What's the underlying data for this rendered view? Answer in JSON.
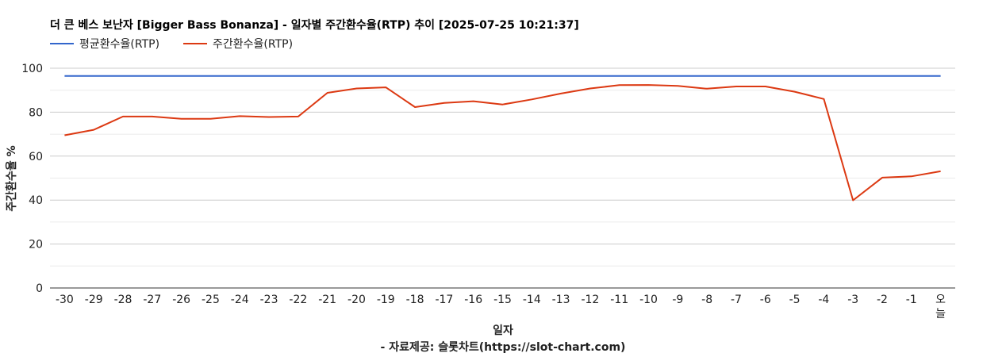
{
  "chart_data": {
    "type": "line",
    "title": "더 큰 베스 보난자 [Bigger Bass Bonanza] - 일자별 주간환수율(RTP) 추이 [2025-07-25 10:21:37]",
    "xlabel": "일자",
    "ylabel": "주간환수율 %",
    "source": "- 자료제공: 슬롯차트(https://slot-chart.com)",
    "ylim": [
      0,
      100
    ],
    "yticks": [
      0,
      20,
      40,
      60,
      80,
      100
    ],
    "grid": true,
    "legend_position": "top-left",
    "categories": [
      "-30",
      "-29",
      "-28",
      "-27",
      "-26",
      "-25",
      "-24",
      "-23",
      "-22",
      "-21",
      "-20",
      "-19",
      "-18",
      "-17",
      "-16",
      "-15",
      "-14",
      "-13",
      "-12",
      "-11",
      "-10",
      "-9",
      "-8",
      "-7",
      "-6",
      "-5",
      "-4",
      "-3",
      "-2",
      "-1",
      "오늘"
    ],
    "series": [
      {
        "name": "평균환수율(RTP)",
        "color": "#3366cc",
        "values": [
          96.5,
          96.5,
          96.5,
          96.5,
          96.5,
          96.5,
          96.5,
          96.5,
          96.5,
          96.5,
          96.5,
          96.5,
          96.5,
          96.5,
          96.5,
          96.5,
          96.5,
          96.5,
          96.5,
          96.5,
          96.5,
          96.5,
          96.5,
          96.5,
          96.5,
          96.5,
          96.5,
          96.5,
          96.5,
          96.5,
          96.5
        ]
      },
      {
        "name": "주간환수율(RTP)",
        "color": "#dc3912",
        "values": [
          69.5,
          72.0,
          78.0,
          78.0,
          77.0,
          77.0,
          78.2,
          77.8,
          78.0,
          88.8,
          90.8,
          91.3,
          82.3,
          84.2,
          85.0,
          83.5,
          85.8,
          88.5,
          90.8,
          92.3,
          92.4,
          92.0,
          90.7,
          91.7,
          91.7,
          89.3,
          86.0,
          39.9,
          50.2,
          50.8,
          53.1
        ]
      }
    ]
  }
}
